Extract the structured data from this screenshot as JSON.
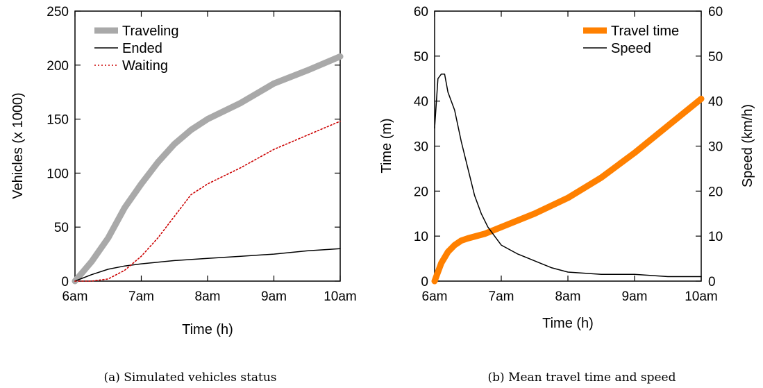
{
  "chart_data": [
    {
      "type": "line",
      "caption": "(a) Simulated vehicles status",
      "xlabel": "Time (h)",
      "ylabel": "Vehicles (x 1000)",
      "x_ticks": [
        "6am",
        "7am",
        "8am",
        "9am",
        "10am"
      ],
      "xlim": [
        6,
        10
      ],
      "ylim": [
        0,
        250
      ],
      "y_ticks": [
        0,
        50,
        100,
        150,
        200,
        250
      ],
      "legend_position": "top-left",
      "series": [
        {
          "name": "Traveling",
          "color": "#a9a9a9",
          "style": "thick",
          "x": [
            6.0,
            6.25,
            6.5,
            6.75,
            7.0,
            7.25,
            7.5,
            7.75,
            8.0,
            8.5,
            9.0,
            9.5,
            10.0
          ],
          "y": [
            0,
            18,
            40,
            68,
            90,
            110,
            127,
            140,
            150,
            165,
            183,
            195,
            208
          ]
        },
        {
          "name": "Ended",
          "color": "#000000",
          "style": "solid",
          "x": [
            6.0,
            6.25,
            6.5,
            6.75,
            7.0,
            7.5,
            8.0,
            8.5,
            9.0,
            9.5,
            10.0
          ],
          "y": [
            0,
            6,
            11,
            14,
            16,
            19,
            21,
            23,
            25,
            28,
            30
          ]
        },
        {
          "name": "Waiting",
          "color": "#cc0000",
          "style": "dotted",
          "x": [
            6.0,
            6.25,
            6.5,
            6.75,
            7.0,
            7.25,
            7.5,
            7.75,
            8.0,
            8.5,
            9.0,
            9.5,
            10.0
          ],
          "y": [
            0,
            0,
            2,
            10,
            23,
            40,
            60,
            80,
            90,
            105,
            122,
            135,
            148
          ]
        }
      ]
    },
    {
      "type": "line",
      "caption": "(b) Mean travel time and speed",
      "xlabel": "Time (h)",
      "ylabel": "Time (m)",
      "y2label": "Speed (km/h)",
      "x_ticks": [
        "6am",
        "7am",
        "8am",
        "9am",
        "10am"
      ],
      "xlim": [
        6,
        10
      ],
      "ylim": [
        0,
        60
      ],
      "y2lim": [
        0,
        60
      ],
      "y_ticks": [
        0,
        10,
        20,
        30,
        40,
        50,
        60
      ],
      "legend_position": "top-right",
      "series": [
        {
          "name": "Travel time",
          "color": "#ff8000",
          "style": "thick",
          "axis": "left",
          "x": [
            6.0,
            6.05,
            6.1,
            6.2,
            6.3,
            6.4,
            6.5,
            6.75,
            7.0,
            7.5,
            8.0,
            8.5,
            9.0,
            9.5,
            10.0
          ],
          "y": [
            0,
            2,
            4,
            6.5,
            8,
            9,
            9.5,
            10.5,
            12,
            15,
            18.5,
            23,
            28.5,
            34.5,
            40.5
          ]
        },
        {
          "name": "Speed",
          "color": "#000000",
          "style": "solid",
          "axis": "right",
          "x": [
            6.0,
            6.05,
            6.1,
            6.15,
            6.2,
            6.3,
            6.4,
            6.5,
            6.6,
            6.7,
            6.8,
            6.9,
            7.0,
            7.25,
            7.5,
            7.75,
            8.0,
            8.5,
            9.0,
            9.5,
            10.0
          ],
          "y": [
            34,
            45,
            46,
            46,
            42,
            38,
            31,
            25,
            19,
            15,
            12,
            10,
            8,
            6,
            4.5,
            3,
            2,
            1.5,
            1.5,
            1,
            1
          ]
        }
      ]
    }
  ]
}
